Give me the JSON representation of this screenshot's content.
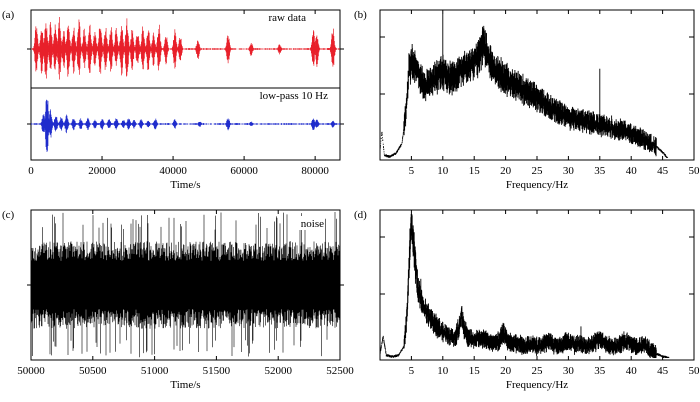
{
  "chart_data": [
    {
      "id": "a",
      "type": "line",
      "panel_label": "(a)",
      "xlabel": "Time/s",
      "xlim": [
        0,
        87000
      ],
      "x_ticks": [
        0,
        20000,
        40000,
        60000,
        80000
      ],
      "x_tick_labels": [
        "0",
        "20000",
        "40000",
        "60000",
        "80000"
      ],
      "subplots": [
        {
          "name": "raw-data",
          "annotation": "raw data",
          "color": "#e8202a",
          "ylim": [
            -1,
            1
          ],
          "bursts": [
            [
              1500,
              0.75
            ],
            [
              3000,
              0.7
            ],
            [
              4200,
              0.9
            ],
            [
              5500,
              0.8
            ],
            [
              6800,
              0.7
            ],
            [
              8000,
              0.95
            ],
            [
              9200,
              0.6
            ],
            [
              10500,
              0.85
            ],
            [
              12000,
              0.7
            ],
            [
              13500,
              0.9
            ],
            [
              15000,
              0.6
            ],
            [
              16500,
              0.75
            ],
            [
              18000,
              0.55
            ],
            [
              19500,
              0.8
            ],
            [
              21000,
              0.65
            ],
            [
              22500,
              0.7
            ],
            [
              24000,
              0.6
            ],
            [
              25500,
              0.75
            ],
            [
              27000,
              0.9
            ],
            [
              28500,
              0.6
            ],
            [
              30000,
              0.55
            ],
            [
              31500,
              0.7
            ],
            [
              33000,
              0.65
            ],
            [
              34500,
              0.5
            ],
            [
              36000,
              0.75
            ],
            [
              38000,
              0.45
            ],
            [
              40500,
              0.55
            ],
            [
              42000,
              0.4
            ],
            [
              47000,
              0.3
            ],
            [
              55500,
              0.45
            ],
            [
              62000,
              0.2
            ],
            [
              70000,
              0.15
            ],
            [
              79500,
              0.55
            ],
            [
              80500,
              0.5
            ],
            [
              85000,
              0.65
            ]
          ]
        },
        {
          "name": "low-pass",
          "annotation": "low-pass 10 Hz",
          "color": "#1f2ccc",
          "ylim": [
            -1,
            1
          ],
          "bursts": [
            [
              3500,
              0.35
            ],
            [
              4500,
              1.0
            ],
            [
              5500,
              0.45
            ],
            [
              7000,
              0.3
            ],
            [
              8500,
              0.25
            ],
            [
              10000,
              0.3
            ],
            [
              12000,
              0.2
            ],
            [
              14000,
              0.18
            ],
            [
              16000,
              0.2
            ],
            [
              18000,
              0.15
            ],
            [
              20000,
              0.18
            ],
            [
              22000,
              0.15
            ],
            [
              24000,
              0.2
            ],
            [
              26000,
              0.15
            ],
            [
              27500,
              0.2
            ],
            [
              29000,
              0.14
            ],
            [
              31000,
              0.15
            ],
            [
              33000,
              0.12
            ],
            [
              35000,
              0.18
            ],
            [
              40500,
              0.15
            ],
            [
              47500,
              0.1
            ],
            [
              55500,
              0.2
            ],
            [
              62000,
              0.08
            ],
            [
              79500,
              0.2
            ],
            [
              80500,
              0.15
            ],
            [
              85000,
              0.12
            ]
          ]
        }
      ]
    },
    {
      "id": "b",
      "type": "line",
      "panel_label": "(b)",
      "xlabel": "Frequency/Hz",
      "xlim": [
        0,
        50
      ],
      "ylim": [
        0,
        1
      ],
      "x_ticks": [
        5,
        10,
        15,
        20,
        25,
        30,
        35,
        40,
        45,
        50
      ],
      "x_tick_labels": [
        "5",
        "10",
        "15",
        "20",
        "25",
        "30",
        "35",
        "40",
        "45",
        "50"
      ],
      "color": "#000000",
      "envelope": [
        [
          0,
          0.05
        ],
        [
          0.3,
          0.18
        ],
        [
          0.7,
          0.02
        ],
        [
          1.5,
          0.01
        ],
        [
          2.5,
          0.03
        ],
        [
          3.5,
          0.1
        ],
        [
          4.2,
          0.35
        ],
        [
          4.6,
          0.6
        ],
        [
          5.2,
          0.68
        ],
        [
          6,
          0.6
        ],
        [
          7,
          0.5
        ],
        [
          8,
          0.52
        ],
        [
          9,
          0.56
        ],
        [
          10,
          0.6
        ],
        [
          11,
          0.55
        ],
        [
          12,
          0.57
        ],
        [
          13,
          0.6
        ],
        [
          14,
          0.64
        ],
        [
          15,
          0.66
        ],
        [
          16,
          0.72
        ],
        [
          16.5,
          0.82
        ],
        [
          17,
          0.72
        ],
        [
          18,
          0.62
        ],
        [
          20,
          0.55
        ],
        [
          22,
          0.5
        ],
        [
          24,
          0.44
        ],
        [
          26,
          0.38
        ],
        [
          28,
          0.33
        ],
        [
          30,
          0.28
        ],
        [
          32,
          0.26
        ],
        [
          34,
          0.24
        ],
        [
          36,
          0.22
        ],
        [
          38,
          0.2
        ],
        [
          40,
          0.17
        ],
        [
          42,
          0.13
        ],
        [
          44,
          0.08
        ],
        [
          45,
          0.04
        ],
        [
          45.8,
          0.0
        ]
      ],
      "spikes": [
        [
          10,
          1.0
        ],
        [
          35,
          0.62
        ],
        [
          16.3,
          0.88
        ],
        [
          5,
          0.72
        ]
      ]
    },
    {
      "id": "c",
      "type": "line",
      "panel_label": "(c)",
      "annotation": "noise",
      "xlabel": "Time/s",
      "xlim": [
        50000,
        52500
      ],
      "ylim": [
        -1,
        1
      ],
      "x_ticks": [
        50000,
        50500,
        51000,
        51500,
        52000,
        52500
      ],
      "x_tick_labels": [
        "50000",
        "50500",
        "51000",
        "51500",
        "52000",
        "52500"
      ],
      "color": "#000000",
      "noise_amplitude": 0.6
    },
    {
      "id": "d",
      "type": "line",
      "panel_label": "(d)",
      "xlabel": "Frequency/Hz",
      "xlim": [
        0,
        50
      ],
      "ylim": [
        0,
        1
      ],
      "x_ticks": [
        5,
        10,
        15,
        20,
        25,
        30,
        35,
        40,
        45,
        50
      ],
      "x_tick_labels": [
        "5",
        "10",
        "15",
        "20",
        "25",
        "30",
        "35",
        "40",
        "45",
        "50"
      ],
      "color": "#000000",
      "envelope": [
        [
          0,
          0.03
        ],
        [
          0.5,
          0.15
        ],
        [
          1,
          0.02
        ],
        [
          2,
          0.01
        ],
        [
          3,
          0.02
        ],
        [
          3.8,
          0.08
        ],
        [
          4.3,
          0.3
        ],
        [
          4.7,
          0.7
        ],
        [
          5,
          0.98
        ],
        [
          5.4,
          0.75
        ],
        [
          6,
          0.5
        ],
        [
          6.5,
          0.42
        ],
        [
          7,
          0.35
        ],
        [
          8,
          0.28
        ],
        [
          9,
          0.22
        ],
        [
          10,
          0.18
        ],
        [
          11,
          0.15
        ],
        [
          12,
          0.14
        ],
        [
          12.6,
          0.22
        ],
        [
          13,
          0.3
        ],
        [
          13.4,
          0.2
        ],
        [
          14,
          0.14
        ],
        [
          15,
          0.12
        ],
        [
          16,
          0.14
        ],
        [
          17,
          0.12
        ],
        [
          18,
          0.1
        ],
        [
          19,
          0.12
        ],
        [
          19.7,
          0.18
        ],
        [
          20.3,
          0.12
        ],
        [
          21,
          0.1
        ],
        [
          22,
          0.1
        ],
        [
          23,
          0.08
        ],
        [
          24,
          0.1
        ],
        [
          25,
          0.08
        ],
        [
          26,
          0.1
        ],
        [
          27,
          0.12
        ],
        [
          28,
          0.08
        ],
        [
          29,
          0.09
        ],
        [
          30,
          0.12
        ],
        [
          31,
          0.09
        ],
        [
          32,
          0.1
        ],
        [
          33,
          0.08
        ],
        [
          34,
          0.1
        ],
        [
          35,
          0.13
        ],
        [
          36,
          0.1
        ],
        [
          37,
          0.08
        ],
        [
          38,
          0.09
        ],
        [
          39,
          0.12
        ],
        [
          40,
          0.1
        ],
        [
          41,
          0.08
        ],
        [
          42,
          0.1
        ],
        [
          43,
          0.06
        ],
        [
          44,
          0.03
        ],
        [
          45,
          0.01
        ],
        [
          46,
          0.0
        ]
      ],
      "spikes": [
        [
          6.5,
          0.55
        ],
        [
          13,
          0.35
        ],
        [
          32,
          0.22
        ]
      ]
    }
  ]
}
